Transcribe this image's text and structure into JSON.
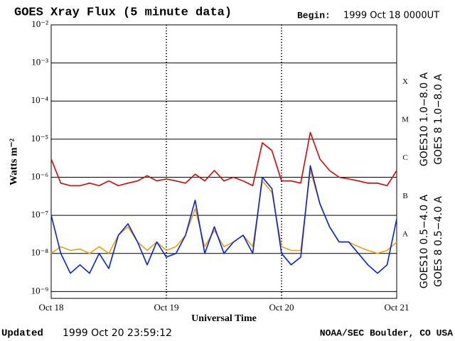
{
  "chart_data": {
    "type": "line",
    "title": "GOES Xray Flux (5 minute data)",
    "begin_label": "Begin:",
    "begin_value": "1999 Oct 18 0000UT",
    "y_label": "Watts m⁻²",
    "x_label": "Universal Time",
    "updated_label": "Updated",
    "updated_value": "1999 Oct 20 23:59:12",
    "source": "NOAA/SEC Boulder, CO USA",
    "log_y": true,
    "grid": true,
    "class_labels": [
      "A",
      "B",
      "C",
      "M",
      "X"
    ],
    "ylim": [
      6.6e-10,
      0.01
    ],
    "yticks": [
      {
        "value": 1e-09,
        "label": "10⁻⁹"
      },
      {
        "value": 1e-08,
        "label": "10⁻⁸"
      },
      {
        "value": 1e-07,
        "label": "10⁻⁷"
      },
      {
        "value": 1e-06,
        "label": "10⁻⁶"
      },
      {
        "value": 1e-05,
        "label": "10⁻⁵"
      },
      {
        "value": 0.0001,
        "label": "10⁻⁴"
      },
      {
        "value": 0.001,
        "label": "10⁻³"
      },
      {
        "value": 0.01,
        "label": "10⁻²"
      }
    ],
    "xlim": [
      0,
      72
    ],
    "xticks": [
      {
        "value": 0,
        "label": "Oct 18"
      },
      {
        "value": 24,
        "label": "Oct 19"
      },
      {
        "value": 48,
        "label": "Oct 20"
      },
      {
        "value": 72,
        "label": "Oct 21"
      }
    ],
    "x": [
      0,
      2,
      4,
      6,
      8,
      10,
      12,
      14,
      16,
      18,
      20,
      22,
      24,
      26,
      28,
      30,
      32,
      34,
      36,
      38,
      40,
      42,
      44,
      46,
      48,
      50,
      52,
      54,
      56,
      58,
      60,
      62,
      64,
      66,
      68,
      70,
      72
    ],
    "series": [
      {
        "name": "GOES10 1.0−8.0 A",
        "color": "#7b2fa8",
        "legend_group": "long",
        "values": [
          null,
          null,
          null,
          null,
          null,
          null,
          null,
          null,
          null,
          null,
          null,
          null,
          null,
          null,
          null,
          null,
          null,
          null,
          null,
          null,
          null,
          null,
          null,
          null,
          null,
          null,
          null,
          null,
          null,
          null,
          null,
          null,
          null,
          null,
          null,
          null,
          null
        ]
      },
      {
        "name": "GOES 8 1.0−8.0 A",
        "color": "#e00000",
        "legend_group": "long",
        "values": [
          3e-06,
          7e-07,
          6e-07,
          6e-07,
          7e-07,
          6e-07,
          8e-07,
          6e-07,
          7e-07,
          8e-07,
          1.1e-06,
          8e-07,
          9e-07,
          8e-07,
          7e-07,
          1.2e-06,
          8e-07,
          1.5e-06,
          8e-07,
          1e-06,
          8e-07,
          6e-07,
          8e-06,
          5e-06,
          8e-07,
          8e-07,
          7e-07,
          1.5e-05,
          3e-06,
          1.5e-06,
          1e-06,
          9e-07,
          8e-07,
          7e-07,
          7e-07,
          6e-07,
          1.5e-06
        ]
      },
      {
        "name": "GOES10 0.5−4.0 A",
        "color": "#f5a000",
        "legend_group": "short",
        "values": [
          1e-08,
          1.5e-08,
          1.2e-08,
          1.3e-08,
          1e-08,
          1.5e-08,
          1e-08,
          3e-08,
          5e-08,
          2e-08,
          1.2e-08,
          2e-08,
          1.2e-08,
          1.5e-08,
          3e-08,
          1.5e-07,
          1.5e-08,
          4e-08,
          1.5e-08,
          2e-08,
          3e-08,
          1.5e-08,
          8e-07,
          4e-07,
          1.5e-08,
          1.2e-08,
          1.2e-08,
          1.5e-06,
          2e-07,
          5e-08,
          2e-08,
          2e-08,
          1.5e-08,
          1.2e-08,
          1e-08,
          1.2e-08,
          2e-08
        ]
      },
      {
        "name": "GOES 8 0.5−4.0 A",
        "color": "#0020f0",
        "legend_group": "short",
        "values": [
          1e-07,
          1e-08,
          3e-09,
          5e-09,
          3e-09,
          1e-08,
          4e-09,
          3e-08,
          6e-08,
          2e-08,
          5e-09,
          2e-08,
          8e-09,
          1e-08,
          3e-08,
          2.5e-07,
          1e-08,
          5e-08,
          1e-08,
          2e-08,
          3e-08,
          1e-08,
          1e-06,
          5e-07,
          1e-08,
          5e-09,
          8e-09,
          2e-06,
          2e-07,
          5e-08,
          2e-08,
          2e-08,
          1e-08,
          5e-09,
          3e-09,
          5e-09,
          8e-08
        ]
      }
    ]
  }
}
